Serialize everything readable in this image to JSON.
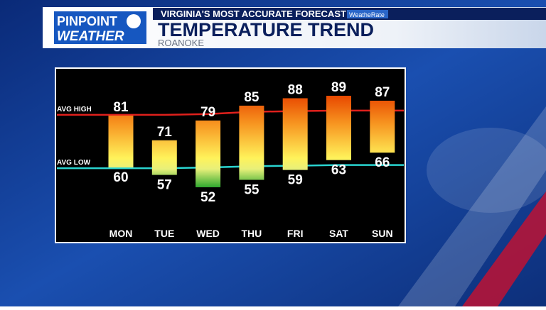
{
  "branding": {
    "logo_top": "PINPOINT",
    "logo_bottom": "WEATHER",
    "tagline": "VIRGINIA'S MOST ACCURATE FORECAST",
    "badge": "WeatheRate"
  },
  "chart_data": {
    "type": "range_bar",
    "title": "TEMPERATURE TREND",
    "subtitle": "ROANOKE",
    "categories": [
      "MON",
      "TUE",
      "WED",
      "THU",
      "FRI",
      "SAT",
      "SUN"
    ],
    "highs": [
      81,
      71,
      79,
      85,
      88,
      89,
      87
    ],
    "lows": [
      60,
      57,
      52,
      55,
      59,
      63,
      66
    ],
    "avg_high": {
      "name": "AVG HIGH",
      "color": "#e0201c",
      "values": [
        81.3,
        81.3,
        81.6,
        82.5,
        82.8,
        83,
        83
      ]
    },
    "avg_low": {
      "name": "AVG LOW",
      "color": "#2ad4d0",
      "values": [
        59.7,
        59.7,
        60,
        60.5,
        60.7,
        61,
        61
      ]
    }
  }
}
